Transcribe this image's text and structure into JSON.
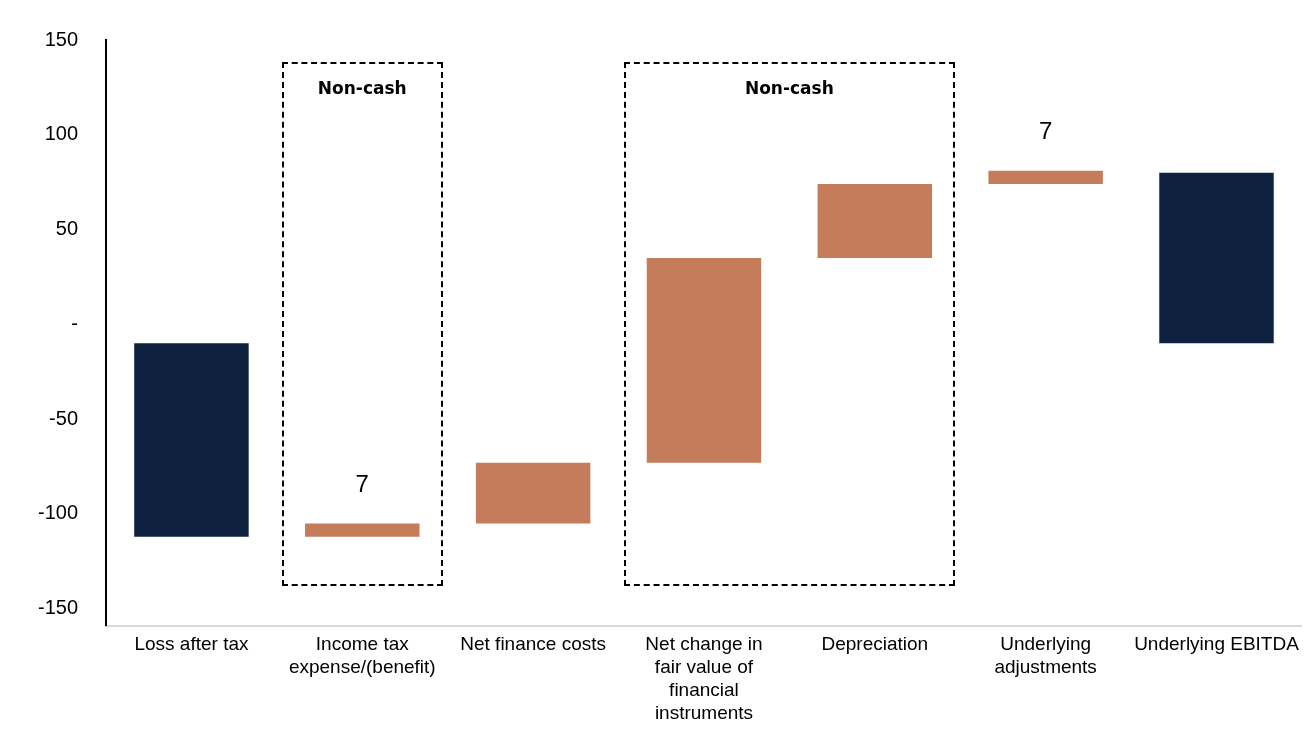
{
  "chart_data": {
    "type": "bar",
    "categories": [
      "Loss after tax",
      "Income tax expense/(benefit)",
      "Net finance costs",
      "Net change in fair value of financial instruments",
      "Depreciation",
      "Underlying adjustments",
      "Underlying EBITDA"
    ],
    "values": [
      -102,
      7,
      32,
      108,
      39,
      7,
      90
    ],
    "base": [
      -10,
      -112,
      -105,
      -73,
      35,
      74,
      -10
    ],
    "colors": [
      "#0e223f",
      "#c47c5a",
      "#c47c5a",
      "#c47c5a",
      "#c47c5a",
      "#c47c5a",
      "#0e223f"
    ],
    "value_labels": [
      null,
      "7",
      null,
      null,
      null,
      "7",
      null
    ],
    "ylim": [
      -159,
      150
    ],
    "yticks": [
      -150,
      -100,
      -50,
      {
        "value": 0,
        "label": "-"
      },
      50,
      100,
      150
    ],
    "annotations": [
      "Non-cash",
      "Non-cash"
    ],
    "grid": false,
    "legend": false
  }
}
